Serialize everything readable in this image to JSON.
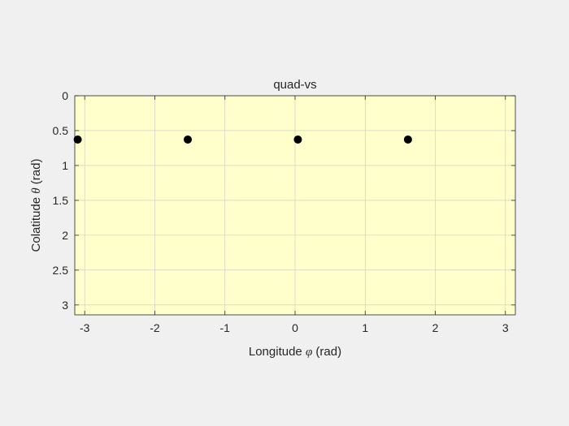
{
  "chart_data": {
    "type": "scatter",
    "title": "quad-vs",
    "xlabel": {
      "prefix": "Longitude ",
      "symbol": "φ",
      "suffix": " (rad)"
    },
    "ylabel": {
      "prefix": "Colatitude ",
      "symbol": "θ",
      "suffix": " (rad)"
    },
    "xlim": [
      -3.1416,
      3.1416
    ],
    "ylim": [
      0,
      3.1416
    ],
    "y_reversed": true,
    "xticks": [
      -3,
      -2,
      -1,
      0,
      1,
      2,
      3
    ],
    "xtick_labels": [
      "-3",
      "-2",
      "-1",
      "0",
      "1",
      "2",
      "3"
    ],
    "yticks": [
      0,
      0.5,
      1,
      1.5,
      2,
      2.5,
      3
    ],
    "ytick_labels": [
      "0",
      "0.5",
      "1",
      "1.5",
      "2",
      "2.5",
      "3"
    ],
    "grid": true,
    "colors": {
      "plot_bg": "#ffffcc",
      "figure_bg": "#f0f0f0",
      "marker": "#000000",
      "grid": "#c8c8c8",
      "axis": "#262626"
    },
    "points": [
      {
        "x": -3.1,
        "y": 0.628
      },
      {
        "x": -1.53,
        "y": 0.628
      },
      {
        "x": 0.04,
        "y": 0.628
      },
      {
        "x": 1.61,
        "y": 0.628
      }
    ]
  }
}
